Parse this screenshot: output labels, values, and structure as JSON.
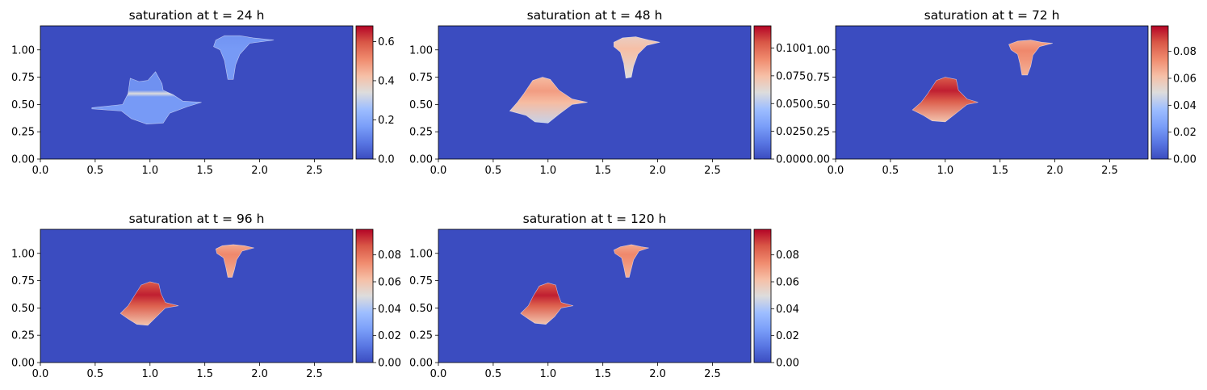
{
  "chart_data": [
    {
      "type": "heatmap",
      "title": "saturation at t = 24 h",
      "xlim": [
        0,
        2.85
      ],
      "ylim": [
        0,
        1.22
      ],
      "xticks": [
        0.0,
        0.5,
        1.0,
        1.5,
        2.0,
        2.5
      ],
      "xtick_labels": [
        "0.0",
        "0.5",
        "1.0",
        "1.5",
        "2.0",
        "2.5"
      ],
      "yticks": [
        0.0,
        0.25,
        0.5,
        0.75,
        1.0
      ],
      "ytick_labels": [
        "0.00",
        "0.25",
        "0.50",
        "0.75",
        "1.00"
      ],
      "colorbar": {
        "cmap": "coolwarm",
        "vmin": 0,
        "vmax": 0.68,
        "ticks": [
          0,
          0.2,
          0.4,
          0.6
        ],
        "tick_labels": [
          "0.0",
          "0.2",
          "0.4",
          "0.6"
        ]
      },
      "background_value": 0.0,
      "plumes": [
        {
          "value_top": 0.14,
          "value_bottom": 0.16,
          "band_value": 0.34,
          "band_y": [
            0.57,
            0.63
          ],
          "outline": [
            [
              0.47,
              0.46
            ],
            [
              0.74,
              0.44
            ],
            [
              0.83,
              0.37
            ],
            [
              0.97,
              0.32
            ],
            [
              1.12,
              0.33
            ],
            [
              1.18,
              0.42
            ],
            [
              1.34,
              0.48
            ],
            [
              1.47,
              0.52
            ],
            [
              1.3,
              0.53
            ],
            [
              1.21,
              0.59
            ],
            [
              1.12,
              0.63
            ],
            [
              1.11,
              0.69
            ],
            [
              1.05,
              0.8
            ],
            [
              0.98,
              0.72
            ],
            [
              0.9,
              0.71
            ],
            [
              0.82,
              0.74
            ],
            [
              0.8,
              0.6
            ],
            [
              0.75,
              0.5
            ],
            [
              0.47,
              0.47
            ]
          ]
        },
        {
          "value_top": 0.16,
          "value_bottom": 0.16,
          "outline": [
            [
              1.6,
              1.09
            ],
            [
              1.68,
              1.13
            ],
            [
              1.82,
              1.13
            ],
            [
              1.94,
              1.11
            ],
            [
              2.13,
              1.09
            ],
            [
              1.91,
              1.06
            ],
            [
              1.82,
              0.96
            ],
            [
              1.78,
              0.86
            ],
            [
              1.76,
              0.73
            ],
            [
              1.71,
              0.73
            ],
            [
              1.68,
              0.9
            ],
            [
              1.64,
              1.0
            ],
            [
              1.58,
              1.03
            ],
            [
              1.6,
              1.09
            ]
          ]
        }
      ]
    },
    {
      "type": "heatmap",
      "title": "saturation at t = 48 h",
      "xlim": [
        0,
        2.85
      ],
      "ylim": [
        0,
        1.22
      ],
      "xticks": [
        0.0,
        0.5,
        1.0,
        1.5,
        2.0,
        2.5
      ],
      "xtick_labels": [
        "0.0",
        "0.5",
        "1.0",
        "1.5",
        "2.0",
        "2.5"
      ],
      "yticks": [
        0.0,
        0.25,
        0.5,
        0.75,
        1.0
      ],
      "ytick_labels": [
        "0.00",
        "0.25",
        "0.50",
        "0.75",
        "1.00"
      ],
      "colorbar": {
        "cmap": "coolwarm",
        "vmin": 0,
        "vmax": 0.12,
        "ticks": [
          0,
          0.025,
          0.05,
          0.075,
          0.1
        ],
        "tick_labels": [
          "0.000",
          "0.025",
          "0.050",
          "0.075",
          "0.100"
        ]
      },
      "background_value": 0.0,
      "plumes": [
        {
          "value_top": 0.085,
          "value_bottom": 0.055,
          "outline": [
            [
              0.65,
              0.44
            ],
            [
              0.8,
              0.4
            ],
            [
              0.88,
              0.34
            ],
            [
              1.0,
              0.33
            ],
            [
              1.1,
              0.41
            ],
            [
              1.22,
              0.5
            ],
            [
              1.36,
              0.52
            ],
            [
              1.22,
              0.55
            ],
            [
              1.1,
              0.63
            ],
            [
              1.02,
              0.73
            ],
            [
              0.95,
              0.75
            ],
            [
              0.86,
              0.72
            ],
            [
              0.78,
              0.6
            ],
            [
              0.72,
              0.52
            ],
            [
              0.65,
              0.44
            ]
          ]
        },
        {
          "value_top": 0.075,
          "value_bottom": 0.06,
          "outline": [
            [
              1.6,
              1.07
            ],
            [
              1.68,
              1.11
            ],
            [
              1.8,
              1.12
            ],
            [
              1.92,
              1.09
            ],
            [
              2.02,
              1.07
            ],
            [
              1.9,
              1.04
            ],
            [
              1.82,
              0.96
            ],
            [
              1.78,
              0.85
            ],
            [
              1.76,
              0.75
            ],
            [
              1.71,
              0.74
            ],
            [
              1.69,
              0.88
            ],
            [
              1.66,
              0.98
            ],
            [
              1.6,
              1.03
            ],
            [
              1.6,
              1.07
            ]
          ]
        }
      ]
    },
    {
      "type": "heatmap",
      "title": "saturation at t = 72 h",
      "xlim": [
        0,
        2.85
      ],
      "ylim": [
        0,
        1.22
      ],
      "xticks": [
        0.0,
        0.5,
        1.0,
        1.5,
        2.0,
        2.5
      ],
      "xtick_labels": [
        "0.0",
        "0.5",
        "1.0",
        "1.5",
        "2.0",
        "2.5"
      ],
      "yticks": [
        0.0,
        0.25,
        0.5,
        0.75,
        1.0
      ],
      "ytick_labels": [
        "0.00",
        "0.25",
        "0.50",
        "0.75",
        "1.00"
      ],
      "colorbar": {
        "cmap": "coolwarm",
        "vmin": 0,
        "vmax": 0.099,
        "ticks": [
          0,
          0.02,
          0.04,
          0.06,
          0.08
        ],
        "tick_labels": [
          "0.00",
          "0.02",
          "0.04",
          "0.06",
          "0.08"
        ]
      },
      "background_value": 0.0,
      "plumes": [
        {
          "value_top": 0.095,
          "value_bottom": 0.06,
          "outline": [
            [
              0.7,
              0.45
            ],
            [
              0.8,
              0.4
            ],
            [
              0.88,
              0.35
            ],
            [
              1.0,
              0.34
            ],
            [
              1.1,
              0.42
            ],
            [
              1.2,
              0.5
            ],
            [
              1.3,
              0.52
            ],
            [
              1.2,
              0.55
            ],
            [
              1.12,
              0.63
            ],
            [
              1.1,
              0.73
            ],
            [
              1.0,
              0.75
            ],
            [
              0.92,
              0.72
            ],
            [
              0.84,
              0.6
            ],
            [
              0.78,
              0.52
            ],
            [
              0.7,
              0.45
            ]
          ]
        },
        {
          "value_top": 0.075,
          "value_bottom": 0.065,
          "outline": [
            [
              1.58,
              1.05
            ],
            [
              1.66,
              1.08
            ],
            [
              1.78,
              1.09
            ],
            [
              1.88,
              1.07
            ],
            [
              1.98,
              1.06
            ],
            [
              1.86,
              1.03
            ],
            [
              1.8,
              0.95
            ],
            [
              1.78,
              0.85
            ],
            [
              1.75,
              0.77
            ],
            [
              1.7,
              0.77
            ],
            [
              1.68,
              0.88
            ],
            [
              1.66,
              0.96
            ],
            [
              1.6,
              1.0
            ],
            [
              1.58,
              1.05
            ]
          ]
        }
      ]
    },
    {
      "type": "heatmap",
      "title": "saturation at t = 96 h",
      "xlim": [
        0,
        2.85
      ],
      "ylim": [
        0,
        1.22
      ],
      "xticks": [
        0.0,
        0.5,
        1.0,
        1.5,
        2.0,
        2.5
      ],
      "xtick_labels": [
        "0.0",
        "0.5",
        "1.0",
        "1.5",
        "2.0",
        "2.5"
      ],
      "yticks": [
        0.0,
        0.25,
        0.5,
        0.75,
        1.0
      ],
      "ytick_labels": [
        "0.00",
        "0.25",
        "0.50",
        "0.75",
        "1.00"
      ],
      "colorbar": {
        "cmap": "coolwarm",
        "vmin": 0,
        "vmax": 0.099,
        "ticks": [
          0,
          0.02,
          0.04,
          0.06,
          0.08
        ],
        "tick_labels": [
          "0.00",
          "0.02",
          "0.04",
          "0.06",
          "0.08"
        ]
      },
      "background_value": 0.0,
      "plumes": [
        {
          "value_top": 0.095,
          "value_bottom": 0.06,
          "outline": [
            [
              0.73,
              0.45
            ],
            [
              0.8,
              0.4
            ],
            [
              0.88,
              0.35
            ],
            [
              0.98,
              0.34
            ],
            [
              1.06,
              0.42
            ],
            [
              1.14,
              0.5
            ],
            [
              1.26,
              0.52
            ],
            [
              1.14,
              0.55
            ],
            [
              1.1,
              0.63
            ],
            [
              1.08,
              0.72
            ],
            [
              1.0,
              0.74
            ],
            [
              0.92,
              0.71
            ],
            [
              0.85,
              0.6
            ],
            [
              0.8,
              0.52
            ],
            [
              0.73,
              0.45
            ]
          ]
        },
        {
          "value_top": 0.075,
          "value_bottom": 0.065,
          "outline": [
            [
              1.6,
              1.04
            ],
            [
              1.66,
              1.07
            ],
            [
              1.76,
              1.08
            ],
            [
              1.86,
              1.07
            ],
            [
              1.95,
              1.05
            ],
            [
              1.84,
              1.02
            ],
            [
              1.79,
              0.94
            ],
            [
              1.77,
              0.85
            ],
            [
              1.75,
              0.78
            ],
            [
              1.71,
              0.78
            ],
            [
              1.69,
              0.88
            ],
            [
              1.67,
              0.96
            ],
            [
              1.61,
              1.0
            ],
            [
              1.6,
              1.04
            ]
          ]
        }
      ]
    },
    {
      "type": "heatmap",
      "title": "saturation at t = 120 h",
      "xlim": [
        0,
        2.85
      ],
      "ylim": [
        0,
        1.22
      ],
      "xticks": [
        0.0,
        0.5,
        1.0,
        1.5,
        2.0,
        2.5
      ],
      "xtick_labels": [
        "0.0",
        "0.5",
        "1.0",
        "1.5",
        "2.0",
        "2.5"
      ],
      "yticks": [
        0.0,
        0.25,
        0.5,
        0.75,
        1.0
      ],
      "ytick_labels": [
        "0.00",
        "0.25",
        "0.50",
        "0.75",
        "1.00"
      ],
      "colorbar": {
        "cmap": "coolwarm",
        "vmin": 0,
        "vmax": 0.099,
        "ticks": [
          0,
          0.02,
          0.04,
          0.06,
          0.08
        ],
        "tick_labels": [
          "0.00",
          "0.02",
          "0.04",
          "0.06",
          "0.08"
        ]
      },
      "background_value": 0.0,
      "plumes": [
        {
          "value_top": 0.095,
          "value_bottom": 0.06,
          "outline": [
            [
              0.75,
              0.45
            ],
            [
              0.82,
              0.4
            ],
            [
              0.88,
              0.36
            ],
            [
              0.98,
              0.35
            ],
            [
              1.06,
              0.42
            ],
            [
              1.12,
              0.5
            ],
            [
              1.23,
              0.52
            ],
            [
              1.12,
              0.55
            ],
            [
              1.09,
              0.63
            ],
            [
              1.07,
              0.71
            ],
            [
              1.0,
              0.73
            ],
            [
              0.92,
              0.7
            ],
            [
              0.86,
              0.6
            ],
            [
              0.82,
              0.52
            ],
            [
              0.75,
              0.45
            ]
          ]
        },
        {
          "value_top": 0.075,
          "value_bottom": 0.065,
          "outline": [
            [
              1.6,
              1.03
            ],
            [
              1.66,
              1.06
            ],
            [
              1.76,
              1.08
            ],
            [
              1.85,
              1.06
            ],
            [
              1.92,
              1.05
            ],
            [
              1.83,
              1.02
            ],
            [
              1.78,
              0.94
            ],
            [
              1.76,
              0.86
            ],
            [
              1.74,
              0.78
            ],
            [
              1.71,
              0.78
            ],
            [
              1.69,
              0.88
            ],
            [
              1.67,
              0.96
            ],
            [
              1.61,
              1.0
            ],
            [
              1.6,
              1.03
            ]
          ]
        }
      ]
    }
  ]
}
